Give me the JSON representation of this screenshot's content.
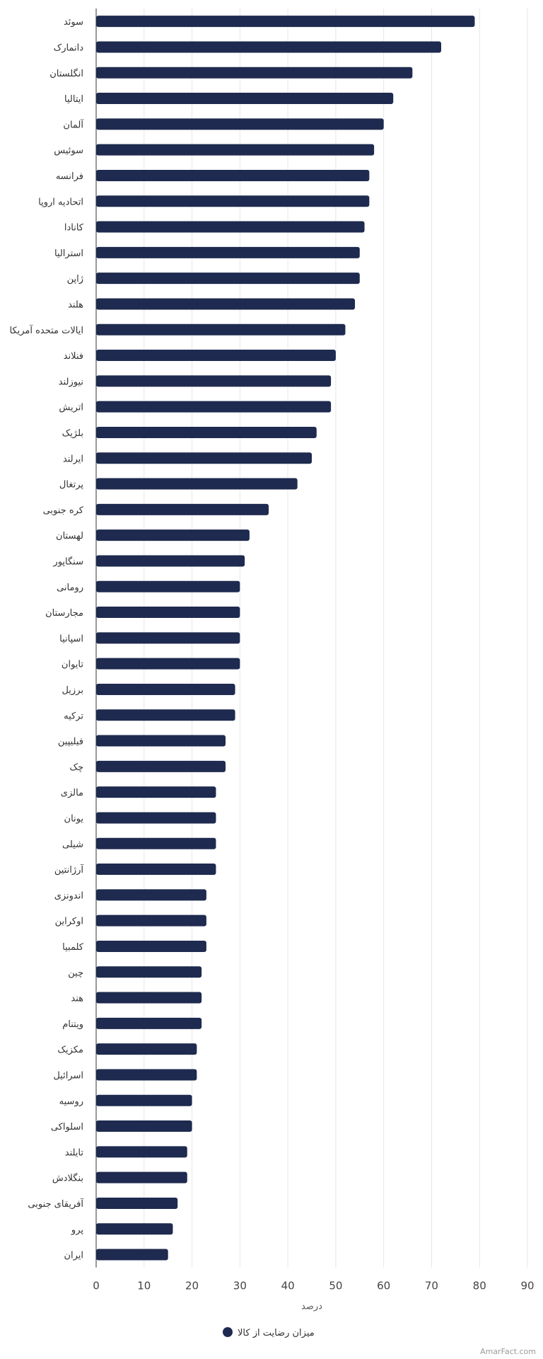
{
  "chart_data": {
    "type": "bar",
    "orientation": "horizontal",
    "categories": [
      "سوئد",
      "دانمارک",
      "انگلستان",
      "ایتالیا",
      "آلمان",
      "سوئیس",
      "فرانسه",
      "اتحادیه اروپا",
      "کانادا",
      "استرالیا",
      "ژاپن",
      "هلند",
      "ایالات متحده آمریکا",
      "فنلاند",
      "نیوزلند",
      "اتریش",
      "بلژیک",
      "ایرلند",
      "پرتغال",
      "کره جنوبی",
      "لهستان",
      "سنگاپور",
      "رومانی",
      "مجارستان",
      "اسپانیا",
      "تایوان",
      "برزیل",
      "ترکیه",
      "فیلیپین",
      "چک",
      "مالزی",
      "یونان",
      "شیلی",
      "آرژانتین",
      "اندونزی",
      "اوکراین",
      "کلمبیا",
      "چین",
      "هند",
      "ویتنام",
      "مکزیک",
      "اسرائیل",
      "روسیه",
      "اسلواکی",
      "تایلند",
      "بنگلادش",
      "آفریقای جنوبی",
      "پرو",
      "ایران"
    ],
    "series": [
      {
        "name": "میزان رضایت از کالا",
        "values": [
          79,
          72,
          66,
          62,
          60,
          58,
          57,
          57,
          56,
          55,
          55,
          54,
          52,
          50,
          49,
          49,
          46,
          45,
          42,
          36,
          32,
          31,
          30,
          30,
          30,
          30,
          29,
          29,
          27,
          27,
          25,
          25,
          25,
          25,
          23,
          23,
          23,
          22,
          22,
          22,
          21,
          21,
          20,
          20,
          19,
          19,
          17,
          16,
          15
        ]
      }
    ],
    "xlabel": "درصد",
    "xlim": [
      0,
      90
    ],
    "xticks": [
      "0",
      "10",
      "20",
      "30",
      "40",
      "50",
      "60",
      "70",
      "80",
      "90"
    ],
    "grid": true,
    "legend_position": "bottom",
    "bar_color": "#1e2a4f"
  },
  "watermark": "AmarFact.com"
}
